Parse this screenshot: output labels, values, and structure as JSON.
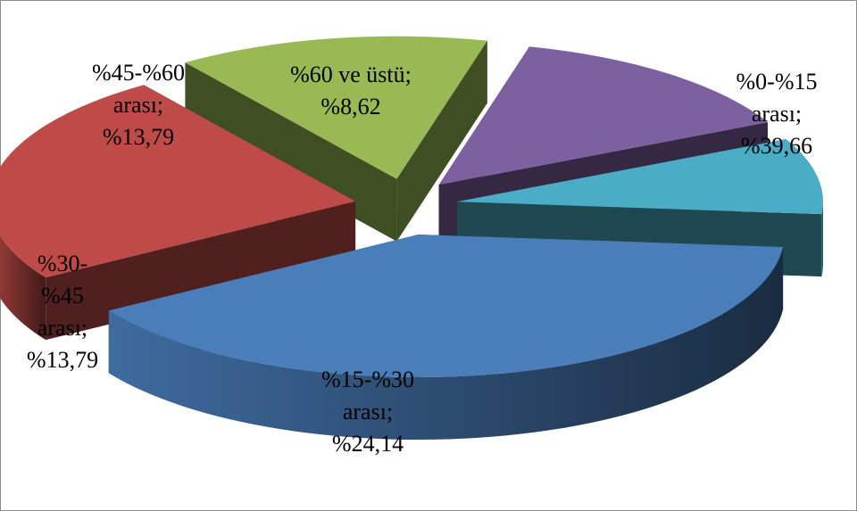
{
  "chart_data": {
    "type": "pie",
    "style": "3d-exploded",
    "slices": [
      {
        "category": "%0-%15 arası",
        "value": 39.66,
        "color": "#4a7ebb",
        "label_lines": [
          "%0-%15",
          "arası;",
          "%39,66"
        ]
      },
      {
        "category": "%15-%30 arası",
        "value": 24.14,
        "color": "#be4b48",
        "label_lines": [
          "%15-%30",
          "arası;",
          "%24,14"
        ]
      },
      {
        "category": "%30-%45 arası",
        "value": 13.79,
        "color": "#98b954",
        "label_lines": [
          "%30-",
          "%45",
          "arası;",
          "%13,79"
        ]
      },
      {
        "category": "%45-%60 arası",
        "value": 13.79,
        "color": "#7d60a0",
        "label_lines": [
          "%45-%60",
          "arası;",
          "%13,79"
        ]
      },
      {
        "category": "%60 ve üstü",
        "value": 8.62,
        "color": "#4bacc6",
        "label_lines": [
          "%60 ve üstü;",
          "%8,62"
        ]
      }
    ],
    "legend": "none"
  }
}
